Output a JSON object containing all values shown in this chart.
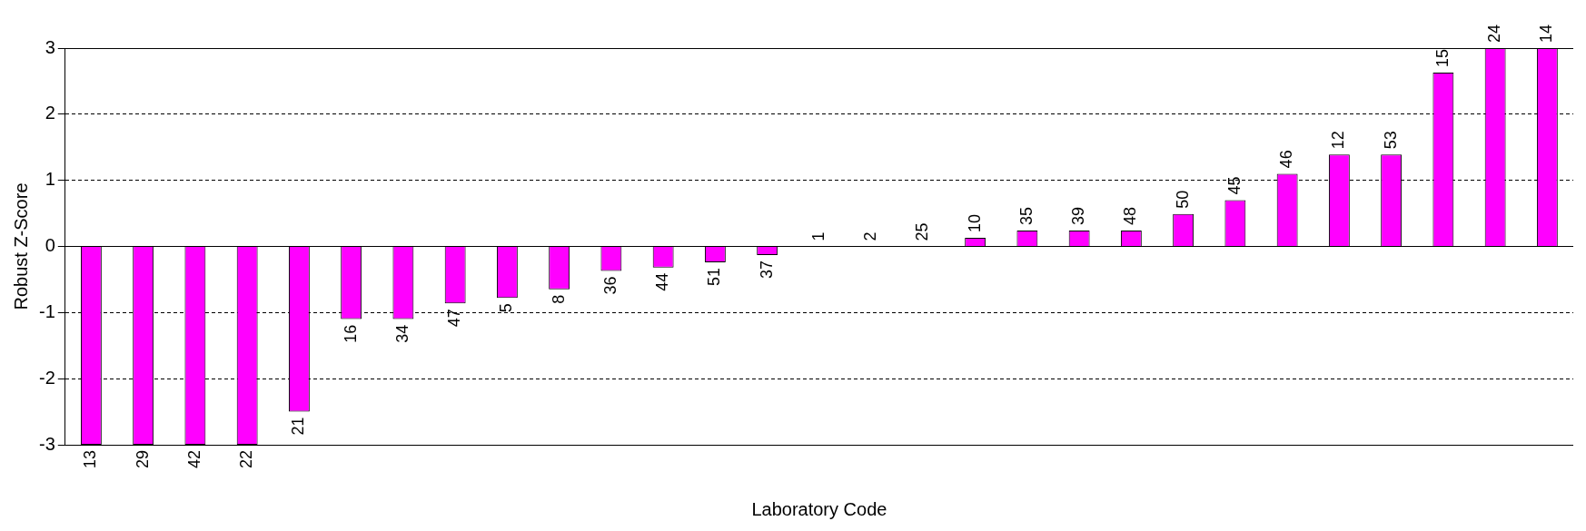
{
  "chart_data": {
    "type": "bar",
    "xlabel": "Laboratory Code",
    "ylabel": "Robust Z-Score",
    "categories": [
      "13",
      "29",
      "42",
      "22",
      "21",
      "16",
      "34",
      "47",
      "5",
      "8",
      "36",
      "44",
      "51",
      "37",
      "1",
      "2",
      "25",
      "10",
      "35",
      "39",
      "48",
      "50",
      "45",
      "46",
      "12",
      "53",
      "15",
      "24",
      "14"
    ],
    "values": [
      -3,
      -3,
      -3,
      -3,
      -2.5,
      -1.1,
      -1.1,
      -0.86,
      -0.78,
      -0.65,
      -0.37,
      -0.32,
      -0.24,
      -0.13,
      0,
      0,
      0,
      0.13,
      0.24,
      0.24,
      0.24,
      0.49,
      0.7,
      1.1,
      1.39,
      1.39,
      2.63,
      3,
      3
    ],
    "color": "#ff00ff",
    "ylim": [
      -3,
      3
    ],
    "yticks": [
      -3,
      -2,
      -1,
      0,
      1,
      2,
      3
    ],
    "grid": "y",
    "line_style": "dashed"
  }
}
